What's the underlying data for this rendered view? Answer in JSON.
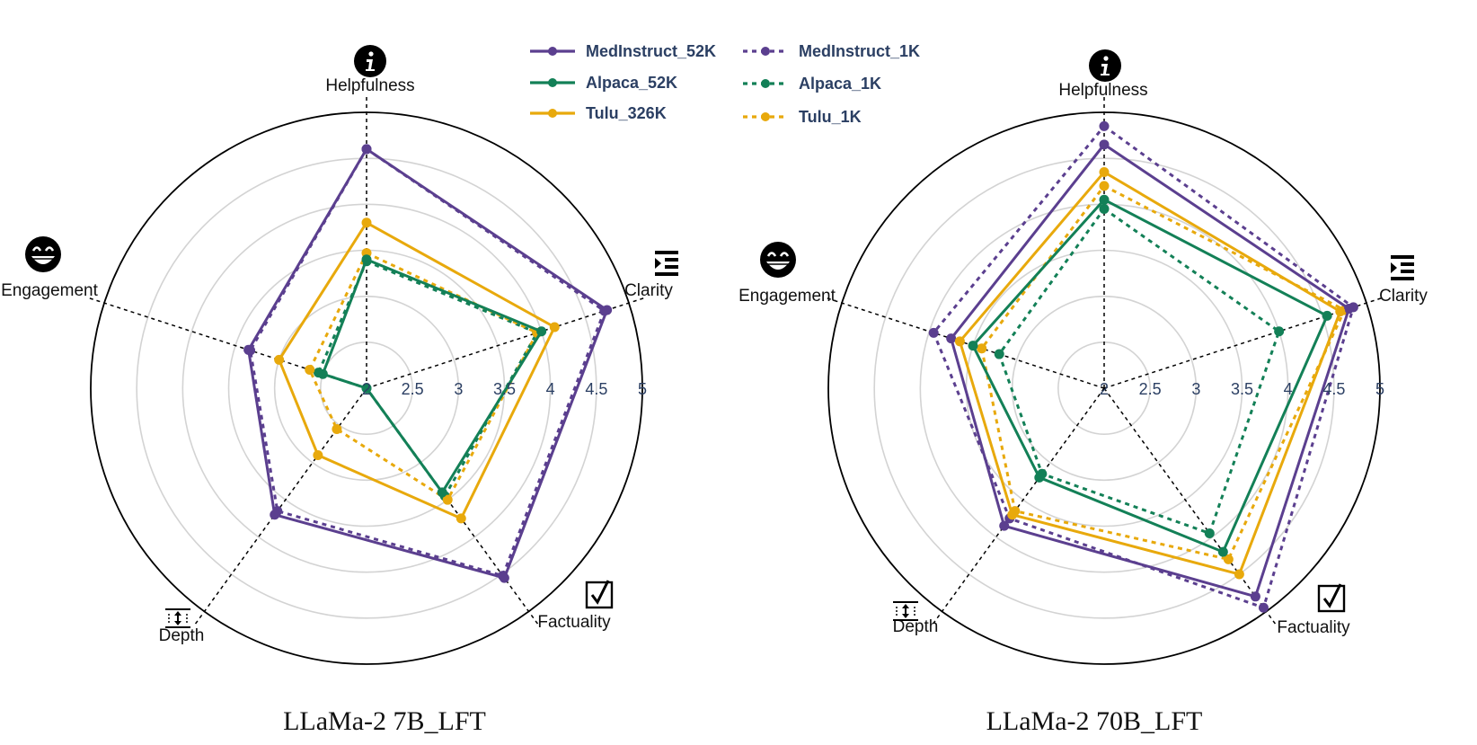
{
  "legend": [
    {
      "name": "MedInstruct_52K",
      "color": "#5b3f8f",
      "dashed": false
    },
    {
      "name": "MedInstruct_1K",
      "color": "#5b3f8f",
      "dashed": true
    },
    {
      "name": "Alpaca_52K",
      "color": "#138057",
      "dashed": false
    },
    {
      "name": "Alpaca_1K",
      "color": "#138057",
      "dashed": true
    },
    {
      "name": "Tulu_326K",
      "color": "#e8a90c",
      "dashed": false
    },
    {
      "name": "Tulu_1K",
      "color": "#e8a90c",
      "dashed": true
    }
  ],
  "chart_data": [
    {
      "type": "radar",
      "title": "LLaMa-2 7B_LFT",
      "axes": [
        "Helpfulness",
        "Clarity",
        "Factuality",
        "Depth",
        "Engagement"
      ],
      "axis_icons": [
        "info-icon",
        "indent-icon",
        "checkbox-icon",
        "depth-icon",
        "grin-icon"
      ],
      "ticks": [
        "2",
        "2.5",
        "3",
        "3.5",
        "4",
        "4.5",
        "5"
      ],
      "range": [
        2,
        5
      ],
      "series": [
        {
          "name": "MedInstruct_52K",
          "values": [
            4.6,
            4.75,
            4.55,
            3.7,
            3.35
          ]
        },
        {
          "name": "MedInstruct_1K",
          "values": [
            4.6,
            4.72,
            4.52,
            3.65,
            3.33
          ]
        },
        {
          "name": "Alpaca_52K",
          "values": [
            3.4,
            4.0,
            3.4,
            2.0,
            2.5
          ]
        },
        {
          "name": "Alpaca_1K",
          "values": [
            3.38,
            3.95,
            3.45,
            2.0,
            2.55
          ]
        },
        {
          "name": "Tulu_326K",
          "values": [
            3.8,
            4.15,
            3.75,
            2.9,
            3.0
          ]
        },
        {
          "name": "Tulu_1K",
          "values": [
            3.47,
            3.95,
            3.5,
            2.55,
            2.65
          ]
        }
      ]
    },
    {
      "type": "radar",
      "title": "LLaMa-2 70B_LFT",
      "axes": [
        "Helpfulness",
        "Clarity",
        "Factuality",
        "Depth",
        "Engagement"
      ],
      "axis_icons": [
        "info-icon",
        "indent-icon",
        "checkbox-icon",
        "depth-icon",
        "grin-icon"
      ],
      "ticks": [
        "2",
        "2.5",
        "3",
        "3.5",
        "4",
        "4.5",
        "5"
      ],
      "range": [
        2,
        5
      ],
      "series": [
        {
          "name": "MedInstruct_52K",
          "values": [
            4.65,
            4.8,
            4.8,
            3.85,
            3.75
          ]
        },
        {
          "name": "MedInstruct_1K",
          "values": [
            4.85,
            4.85,
            4.95,
            3.75,
            3.95
          ]
        },
        {
          "name": "Alpaca_52K",
          "values": [
            4.05,
            4.55,
            4.2,
            3.2,
            3.5
          ]
        },
        {
          "name": "Alpaca_1K",
          "values": [
            3.95,
            4.0,
            3.95,
            3.15,
            3.2
          ]
        },
        {
          "name": "Tulu_326K",
          "values": [
            4.35,
            4.7,
            4.5,
            3.7,
            3.65
          ]
        },
        {
          "name": "Tulu_1K",
          "values": [
            4.2,
            4.75,
            4.3,
            3.65,
            3.4
          ]
        }
      ]
    }
  ]
}
